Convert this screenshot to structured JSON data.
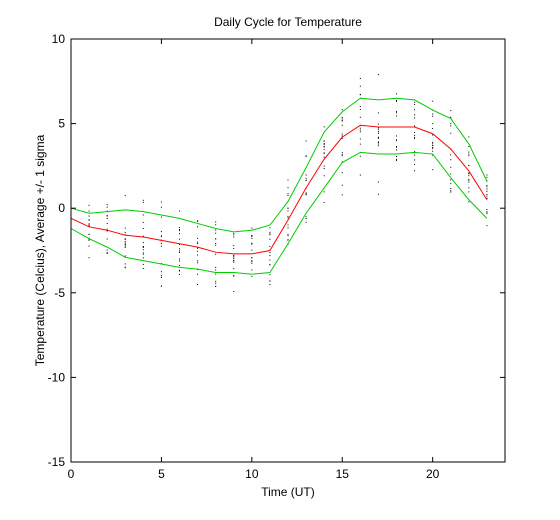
{
  "chart_data": {
    "type": "line",
    "title": "Daily Cycle for Temperature",
    "xlabel": "Time (UT)",
    "ylabel": "Temperature (Celcius), Average +/- 1 sigma",
    "xlim": [
      0,
      24
    ],
    "ylim": [
      -15,
      10
    ],
    "xticks": [
      0,
      5,
      10,
      15,
      20
    ],
    "yticks": [
      -15,
      -10,
      -5,
      0,
      5,
      10
    ],
    "grid": false,
    "x": [
      0,
      1,
      2,
      3,
      4,
      5,
      6,
      7,
      8,
      9,
      10,
      11,
      12,
      13,
      14,
      15,
      16,
      17,
      18,
      19,
      20,
      21,
      22,
      23
    ],
    "series": [
      {
        "values": [
          -0.6,
          -1.1,
          -1.3,
          -1.6,
          -1.7,
          -1.9,
          -2.1,
          -2.3,
          -2.6,
          -2.7,
          -2.7,
          -2.5,
          -0.7,
          1.2,
          2.9,
          4.2,
          4.9,
          4.8,
          4.8,
          4.8,
          4.4,
          3.5,
          2.2,
          0.5
        ],
        "color": "#ff0000"
      },
      {
        "values": [
          0.0,
          -0.3,
          -0.2,
          -0.1,
          -0.2,
          -0.4,
          -0.6,
          -0.9,
          -1.2,
          -1.4,
          -1.3,
          -1.0,
          0.4,
          2.4,
          4.5,
          5.7,
          6.5,
          6.4,
          6.5,
          6.4,
          5.8,
          5.3,
          3.8,
          1.6
        ],
        "color": "#00cc00"
      },
      {
        "values": [
          -1.2,
          -1.8,
          -2.3,
          -2.9,
          -3.1,
          -3.3,
          -3.5,
          -3.6,
          -3.8,
          -3.8,
          -3.9,
          -3.8,
          -2.1,
          -0.3,
          1.2,
          2.7,
          3.3,
          3.2,
          3.2,
          3.3,
          3.2,
          1.8,
          0.5,
          -0.6
        ],
        "color": "#00cc00"
      }
    ],
    "scatter_color": "#000000"
  }
}
